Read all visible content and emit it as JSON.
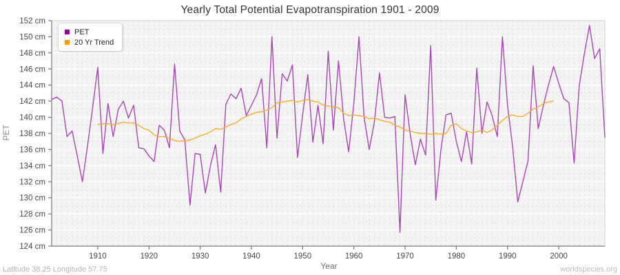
{
  "title": "Yearly Total Potential Evapotranspiration 1901 - 2009",
  "x_axis_label": "Year",
  "y_axis_label": "PET",
  "footer_left": "Latitude 38.25 Longitude 57.75",
  "footer_right": "worldspecies.org",
  "legend": [
    {
      "label": "PET",
      "marker_color": "#990099"
    },
    {
      "label": "20 Yr Trend",
      "marker_color": "#ff9912"
    }
  ],
  "colors": {
    "plot_background": "#f4f4f4",
    "plot_border": "#d0d0d0",
    "axis_spine": "#787878",
    "major_grid": "#ffffff",
    "minor_grid": "#e2e2e2",
    "tick_label": "#484848",
    "pet_line": "#a845b5",
    "trend_line": "#ffa928"
  },
  "chart_data": {
    "type": "line",
    "title": "Yearly Total Potential Evapotranspiration 1901 - 2009",
    "xlabel": "Year",
    "ylabel": "PET",
    "xlim": [
      1901,
      2009
    ],
    "ylim": [
      124,
      152
    ],
    "x_ticks": [
      1910,
      1920,
      1930,
      1940,
      1950,
      1960,
      1970,
      1980,
      1990,
      2000
    ],
    "y_ticks": [
      124,
      126,
      128,
      130,
      132,
      134,
      136,
      138,
      140,
      142,
      144,
      146,
      148,
      150,
      152
    ],
    "y_tick_suffix": " cm",
    "grid": "yearly vertical dashed, 1 cm horizontal dashed, 2 cm major lines",
    "legend_position": "top-left",
    "series": [
      {
        "name": "PET",
        "color": "#a845b5",
        "x_start": 1901,
        "values": [
          142.2,
          142.5,
          142.0,
          137.6,
          138.3,
          135.2,
          132.0,
          136.4,
          141.2,
          146.2,
          135.5,
          141.7,
          137.6,
          141.0,
          142.0,
          139.9,
          141.5,
          136.2,
          136.1,
          135.2,
          134.5,
          139.0,
          138.4,
          136.2,
          146.6,
          138.3,
          137.2,
          129.1,
          135.5,
          135.4,
          130.6,
          134.0,
          136.6,
          130.7,
          141.6,
          142.9,
          142.3,
          143.6,
          140.2,
          141.5,
          142.8,
          144.8,
          136.2,
          150.0,
          137.4,
          145.4,
          144.5,
          146.5,
          135.0,
          140.3,
          145.3,
          136.9,
          141.5,
          136.7,
          148.2,
          138.4,
          147.0,
          139.8,
          135.7,
          141.8,
          150.0,
          140.0,
          136.0,
          139.4,
          145.5,
          140.0,
          139.9,
          140.1,
          125.7,
          142.8,
          137.9,
          134.1,
          137.3,
          135.3,
          148.9,
          129.7,
          136.0,
          140.3,
          140.5,
          137.0,
          134.5,
          138.2,
          134.2,
          146.1,
          138.0,
          141.9,
          140.2,
          137.6,
          150.0,
          141.5,
          136.3,
          129.5,
          132.0,
          134.6,
          146.4,
          138.6,
          141.5,
          144.0,
          146.3,
          144.2,
          142.3,
          141.8,
          134.3,
          143.9,
          147.9,
          151.4,
          147.3,
          148.5,
          137.5
        ]
      },
      {
        "name": "20 Yr Trend",
        "color": "#ffa928",
        "x_start": 1910,
        "values": [
          139.1,
          139.2,
          139.2,
          139.1,
          139.2,
          139.4,
          139.3,
          139.3,
          139.0,
          138.6,
          138.4,
          137.8,
          137.6,
          137.6,
          137.4,
          137.1,
          137.0,
          137.1,
          137.2,
          137.4,
          137.7,
          137.9,
          138.2,
          138.6,
          138.5,
          138.8,
          139.1,
          139.3,
          139.8,
          140.1,
          140.4,
          140.6,
          140.7,
          140.9,
          141.2,
          141.8,
          141.9,
          142.0,
          142.1,
          141.9,
          142.1,
          142.2,
          142.0,
          141.9,
          141.5,
          141.4,
          141.3,
          141.2,
          140.5,
          140.2,
          140.3,
          140.2,
          140.1,
          139.8,
          139.9,
          139.7,
          139.5,
          139.4,
          139.0,
          138.8,
          138.4,
          138.3,
          138.1,
          138.0,
          138.0,
          137.9,
          138.0,
          137.9,
          138.0,
          139.0,
          139.2,
          138.6,
          138.3,
          138.1,
          138.2,
          138.4,
          138.1,
          138.4,
          139.0,
          139.6,
          140.1,
          140.3,
          140.1,
          140.1,
          140.5,
          141.0,
          141.3,
          141.7,
          141.9,
          142.0
        ]
      }
    ]
  }
}
